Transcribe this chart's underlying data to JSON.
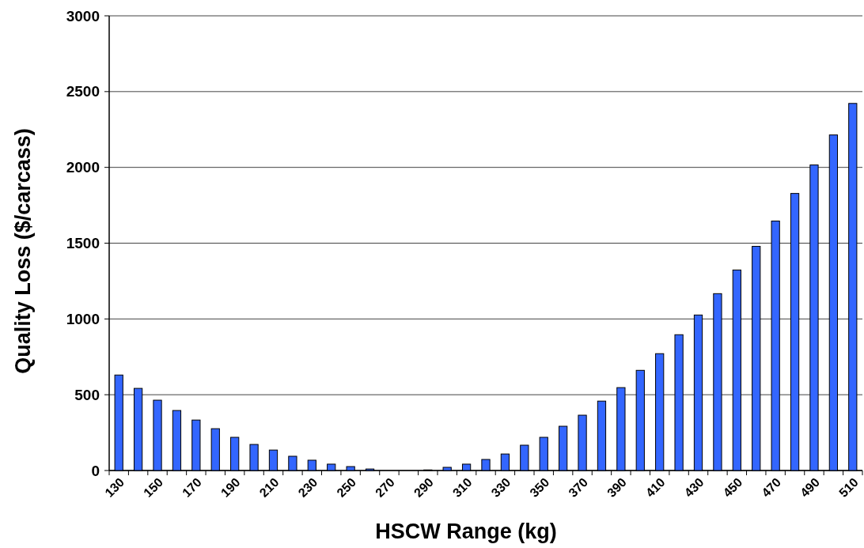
{
  "chart_data": {
    "type": "bar",
    "xlabel": "HSCW Range (kg)",
    "ylabel": "Quality Loss ($/carcass)",
    "categories": [
      "130",
      null,
      "150",
      null,
      "170",
      null,
      "190",
      null,
      "210",
      null,
      "230",
      null,
      "250",
      null,
      "270",
      null,
      "290",
      null,
      "310",
      null,
      "330",
      null,
      "350",
      null,
      "370",
      null,
      "390",
      null,
      "410",
      null,
      "430",
      null,
      "450",
      null,
      "470",
      null,
      "490",
      null,
      "510"
    ],
    "series": [
      {
        "color": "#3366ff",
        "values": [
          630,
          542,
          464,
          396,
          333,
          276,
          219,
          172,
          135,
          94,
          68,
          42,
          26,
          10,
          0,
          0,
          4,
          21,
          42,
          73,
          109,
          167,
          219,
          292,
          365,
          458,
          547,
          661,
          771,
          896,
          1026,
          1167,
          1323,
          1479,
          1646,
          1828,
          2016,
          2214,
          2422
        ]
      }
    ],
    "ylim": [
      0,
      3000
    ],
    "yticks": [
      0,
      500,
      1000,
      1500,
      2000,
      2500,
      3000
    ],
    "grid": "y"
  }
}
